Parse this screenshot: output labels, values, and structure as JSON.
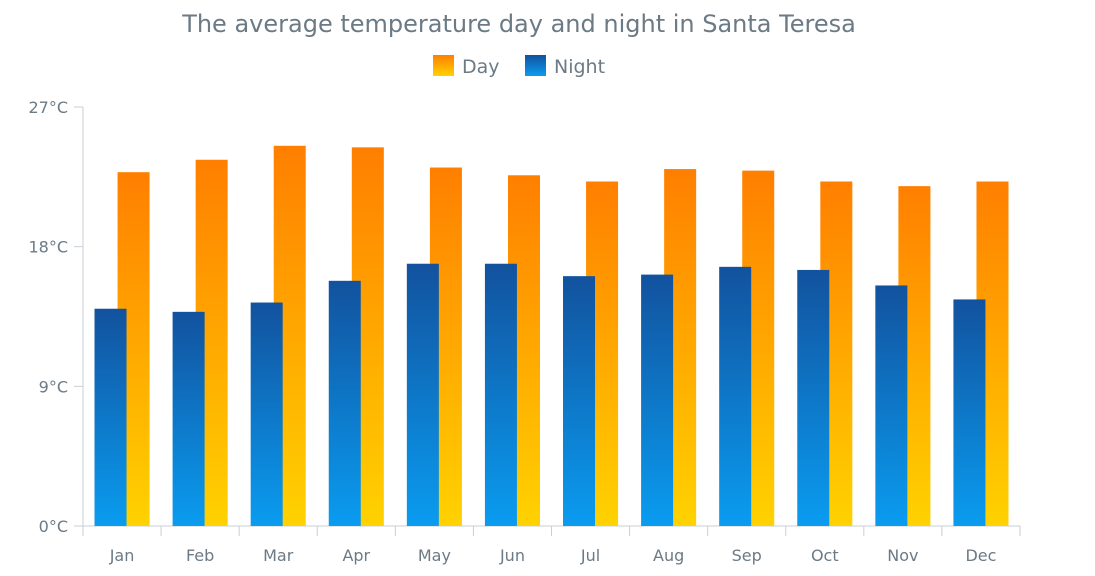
{
  "chart_data": {
    "type": "bar",
    "title": "The average temperature day and night in Santa Teresa",
    "categories": [
      "Jan",
      "Feb",
      "Mar",
      "Apr",
      "May",
      "Jun",
      "Jul",
      "Aug",
      "Sep",
      "Oct",
      "Nov",
      "Dec"
    ],
    "series": [
      {
        "name": "Day",
        "values": [
          22.8,
          23.6,
          24.5,
          24.4,
          23.1,
          22.6,
          22.2,
          23.0,
          22.9,
          22.2,
          21.9,
          22.2
        ]
      },
      {
        "name": "Night",
        "values": [
          14.0,
          13.8,
          14.4,
          15.8,
          16.9,
          16.9,
          16.1,
          16.2,
          16.7,
          16.5,
          15.5,
          14.6
        ]
      }
    ],
    "ylim": [
      0,
      27
    ],
    "yticks": [
      0,
      9,
      18,
      27
    ],
    "ytick_labels": [
      "0°C",
      "9°C",
      "18°C",
      "27°C"
    ],
    "xlabel": "",
    "ylabel": "",
    "grid": false,
    "legend_position": "top-center",
    "colors": {
      "day_top": "#ff7f00",
      "day_bottom": "#ffd200",
      "night_top": "#12529e",
      "night_bottom": "#0a9cf0"
    }
  }
}
